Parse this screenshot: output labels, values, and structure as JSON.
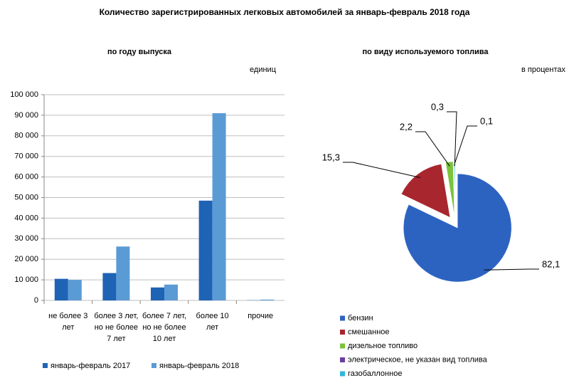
{
  "title": "Количество зарегистрированных  легковых автомобилей  за январь-февраль  2018 года",
  "chart_data": [
    {
      "type": "bar",
      "title": "по году выпуска",
      "unit": "единиц",
      "categories": [
        "не более 3 лет",
        "более 3 лет, но не более 7 лет",
        "более 7 лет, но не более 10 лет",
        "более 10 лет",
        "прочие"
      ],
      "series": [
        {
          "name": "январь-февраль 2017",
          "color": "#1f63b5",
          "values": [
            10500,
            13300,
            6300,
            48500,
            100
          ]
        },
        {
          "name": "январь-февраль 2018",
          "color": "#5b9bd5",
          "values": [
            10000,
            26200,
            7700,
            91000,
            400
          ]
        }
      ],
      "ylim": [
        0,
        100000
      ],
      "yticks": [
        0,
        {
          "value": 10000,
          "label": "10 000"
        },
        {
          "value": 20000,
          "label": "20 000"
        },
        {
          "value": 30000,
          "label": "30 000"
        },
        {
          "value": 40000,
          "label": "40 000"
        },
        {
          "value": 50000,
          "label": "50 000"
        },
        {
          "value": 60000,
          "label": "60 000"
        },
        {
          "value": 70000,
          "label": "70 000"
        },
        {
          "value": 80000,
          "label": "80 000"
        },
        {
          "value": 90000,
          "label": "90 000"
        },
        {
          "value": 100000,
          "label": "100 000"
        }
      ],
      "grid": true
    },
    {
      "type": "pie",
      "title": "по виду используемого  топлива",
      "unit": "в процентах",
      "categories": [
        "бензин",
        "смешанное",
        "дизельное топливо",
        "электрическое, не указан вид топлива",
        "газобаллонное"
      ],
      "values": [
        82.1,
        15.3,
        2.2,
        0.1,
        0.3
      ],
      "value_labels": [
        "82,1",
        "15,3",
        "2,2",
        "0,1",
        "0,3"
      ],
      "colors": [
        "#2d63c0",
        "#a8262e",
        "#7cc23a",
        "#6a3fa0",
        "#2fb8d8"
      ]
    }
  ]
}
